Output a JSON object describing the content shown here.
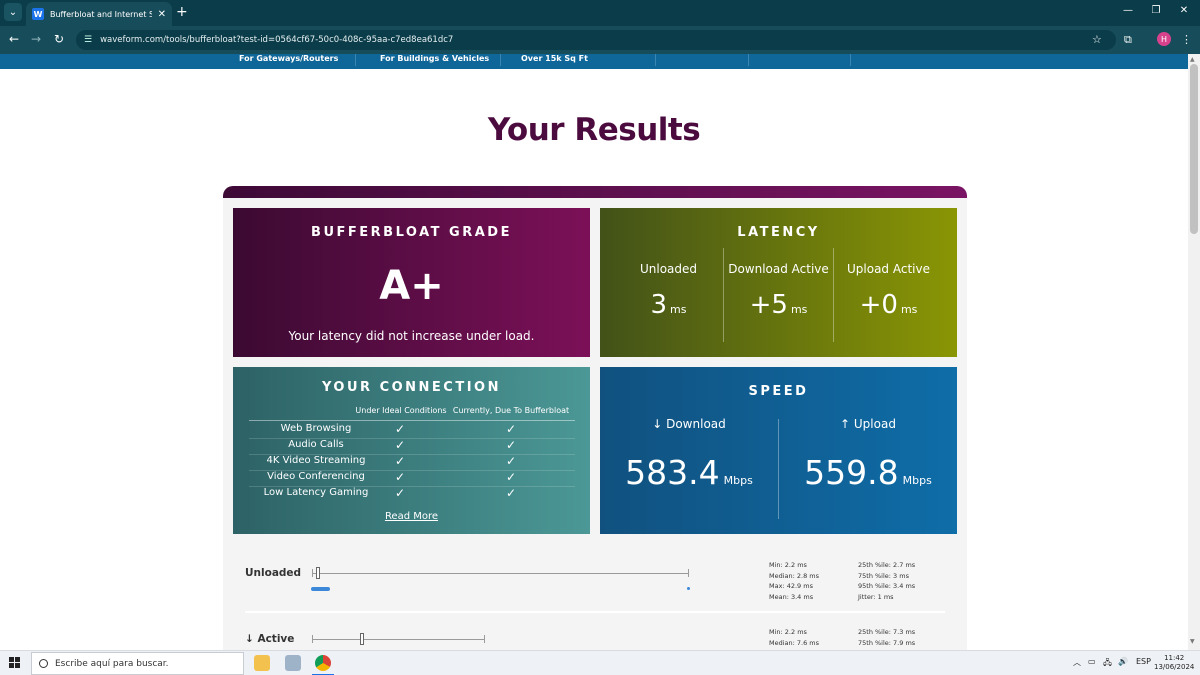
{
  "browser": {
    "tab_title": "Bufferbloat and Internet Speed",
    "favicon_letter": "W",
    "url": "waveform.com/tools/bufferbloat?test-id=0564cf67-50c0-408c-95aa-c7ed8ea61dc7",
    "profile_initial": "H"
  },
  "site_nav": {
    "items": [
      "For Gateways/Routers",
      "For Buildings & Vehicles",
      "Over 15k Sq Ft"
    ]
  },
  "page": {
    "title": "Your Results"
  },
  "grade_card": {
    "title": "BUFFERBLOAT GRADE",
    "grade": "A+",
    "note": "Your latency did not increase under load."
  },
  "latency_card": {
    "title": "LATENCY",
    "columns": [
      {
        "label": "Unloaded",
        "value": "3",
        "unit": "ms"
      },
      {
        "label": "Download Active",
        "value": "+5",
        "unit": "ms"
      },
      {
        "label": "Upload Active",
        "value": "+0",
        "unit": "ms"
      }
    ]
  },
  "connection_card": {
    "title": "YOUR CONNECTION",
    "col_ideal": "Under Ideal Conditions",
    "col_current": "Currently, Due To Bufferbloat",
    "check_glyph": "✓",
    "rows": [
      {
        "name": "Web Browsing",
        "ideal": true,
        "current": true
      },
      {
        "name": "Audio Calls",
        "ideal": true,
        "current": true
      },
      {
        "name": "4K Video Streaming",
        "ideal": true,
        "current": true
      },
      {
        "name": "Video Conferencing",
        "ideal": true,
        "current": true
      },
      {
        "name": "Low Latency Gaming",
        "ideal": true,
        "current": true
      }
    ],
    "read_more": "Read More"
  },
  "speed_card": {
    "title": "SPEED",
    "download": {
      "label": "↓ Download",
      "value": "583.4",
      "unit": "Mbps"
    },
    "upload": {
      "label": "↑ Upload",
      "value": "559.8",
      "unit": "Mbps"
    }
  },
  "stats": [
    {
      "label": "Unloaded",
      "left": [
        "Min: 2.2 ms",
        "Median: 2.8 ms",
        "Max: 42.9 ms",
        "Mean: 3.4 ms"
      ],
      "right": [
        "25th %ile: 2.7 ms",
        "75th %ile: 3 ms",
        "95th %ile: 3.4 ms",
        "Jitter: 1 ms"
      ]
    },
    {
      "label": "↓ Active",
      "left": [
        "Min: 2.2 ms",
        "Median: 7.6 ms"
      ],
      "right": [
        "25th %ile: 7.3 ms",
        "75th %ile: 7.9 ms"
      ]
    }
  ],
  "taskbar": {
    "search_placeholder": "Escribe aquí para buscar.",
    "language": "ESP",
    "time": "11:42",
    "date": "13/06/2024"
  },
  "colors": {
    "title": "#4c0b3e",
    "grade_gradient": [
      "#3b0a32",
      "#7c1058"
    ],
    "latency_gradient": [
      "#425218",
      "#8a9604"
    ],
    "connection_gradient": [
      "#2d6266",
      "#4b9896"
    ],
    "speed_gradient": [
      "#10517f",
      "#0f6da8"
    ]
  }
}
